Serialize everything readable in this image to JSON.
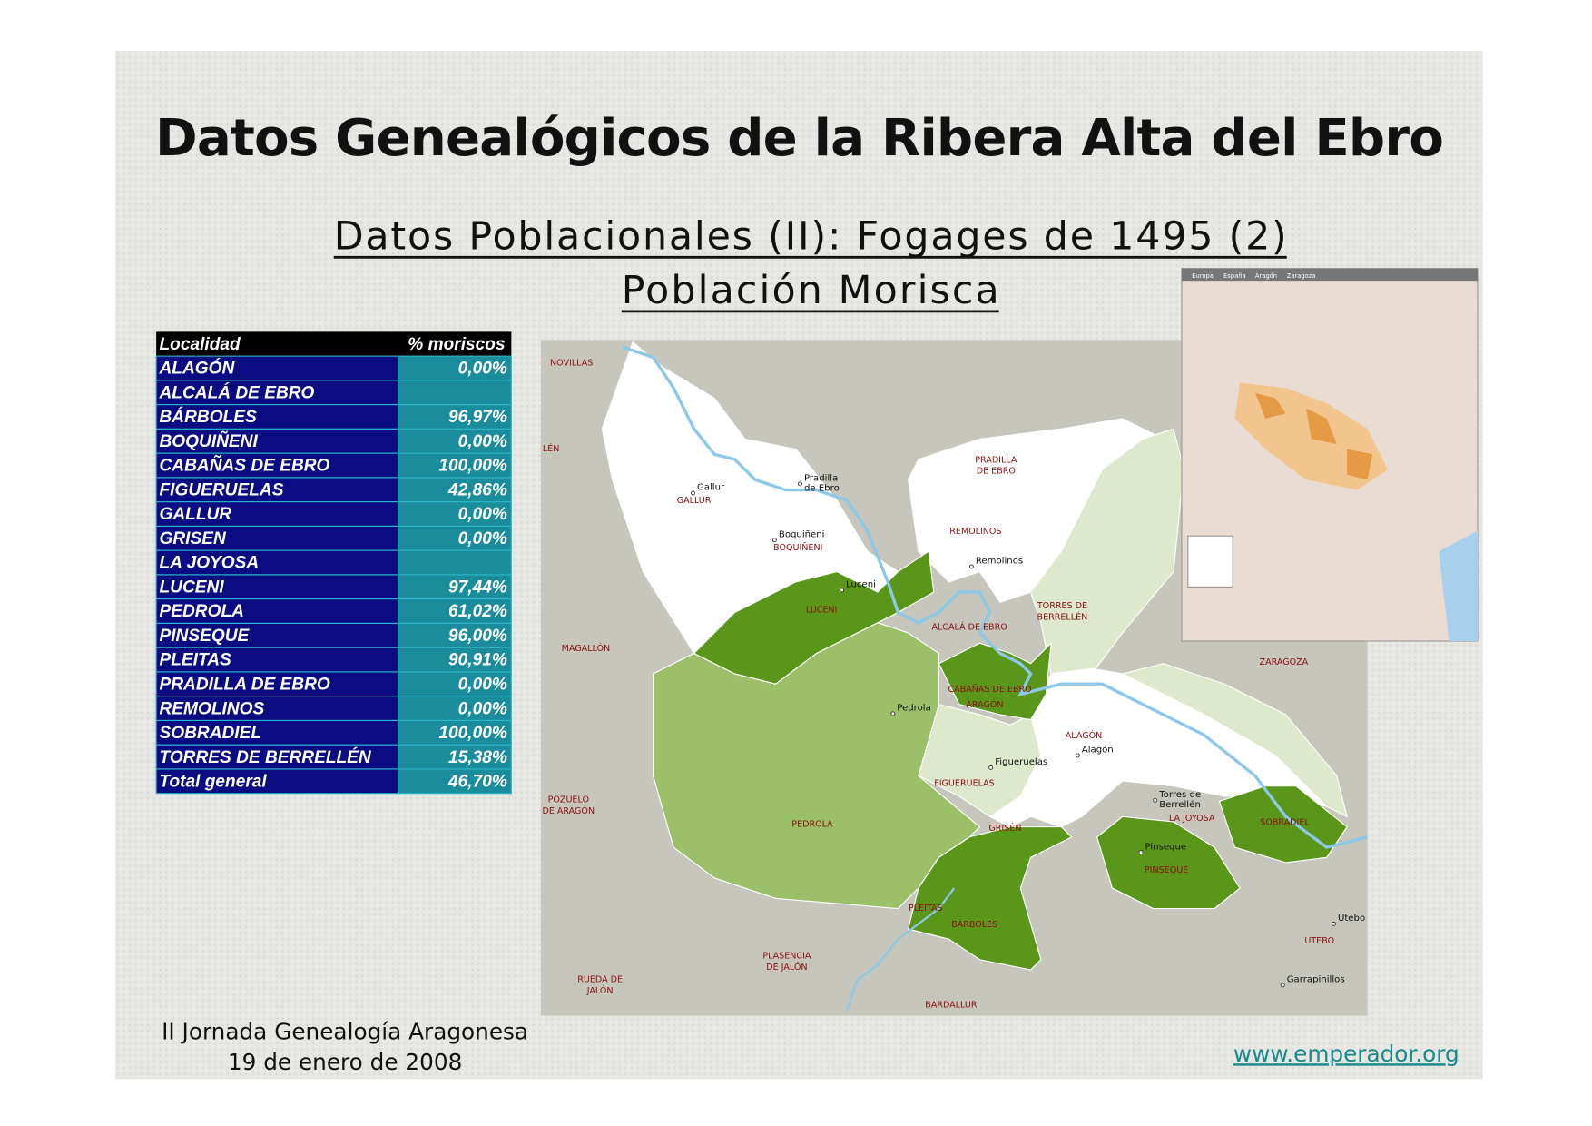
{
  "header": {
    "title": "Datos Genealógicos de la Ribera Alta del Ebro",
    "subtitle": [
      "Datos Poblacionales (II): Fogages de 1495 (2)",
      "Población Morisca"
    ]
  },
  "table": {
    "columns": [
      "Localidad",
      "% moriscos"
    ],
    "rows": [
      [
        "ALAGÓN",
        "0,00%"
      ],
      [
        "ALCALÁ DE EBRO",
        null
      ],
      [
        "BÁRBOLES",
        "96,97%"
      ],
      [
        "BOQUIÑENI",
        "0,00%"
      ],
      [
        "CABAÑAS DE EBRO",
        "100,00%"
      ],
      [
        "FIGUERUELAS",
        "42,86%"
      ],
      [
        "GALLUR",
        "0,00%"
      ],
      [
        "GRISEN",
        "0,00%"
      ],
      [
        "LA JOYOSA",
        null
      ],
      [
        "LUCENI",
        "97,44%"
      ],
      [
        "PEDROLA",
        "61,02%"
      ],
      [
        "PINSEQUE",
        "96,00%"
      ],
      [
        "PLEITAS",
        "90,91%"
      ],
      [
        "PRADILLA DE EBRO",
        "0,00%"
      ],
      [
        "REMOLINOS",
        "0,00%"
      ],
      [
        "SOBRADIEL",
        "100,00%"
      ],
      [
        "TORRES DE BERRELLÉN",
        "15,38%"
      ]
    ],
    "total": [
      "Total general",
      "46,70%"
    ]
  },
  "map": {
    "areas": [
      "NOVILLAS",
      "LÉN",
      "GALLUR",
      "BOQUIÑENI",
      "LUCENI",
      "MAGALLÓN",
      "ALCALÁ DE EBRO",
      [
        "PRADILLA",
        "DE EBRO"
      ],
      "REMOLINOS",
      [
        "TORRES DE",
        "BERRELLÉN"
      ],
      "ZARAGOZA",
      "CABAÑAS DE EBRO",
      "ARAGÓN",
      "ALAGÓN",
      "FIGUERUELAS",
      "PEDROLA",
      [
        "POZUELO",
        "DE ARAGÓN"
      ],
      "GRISÉN",
      "LA JOYOSA",
      "SOBRADIEL",
      "PINSEQUE",
      "PLEITAS",
      "BÁRBOLES",
      "UTEBO",
      [
        "PLASENCIA",
        "DE JALÓN"
      ],
      [
        "RUEDA DE",
        "JALÓN"
      ],
      "BARDALLUR"
    ],
    "towns": [
      "Gallur",
      [
        "Pradilla",
        "de Ebro"
      ],
      "Boquiñeni",
      "Luceni",
      "Remolinos",
      "Pedrola",
      "Figueruelas",
      "Alagón",
      [
        "Torres de",
        "Berrellén"
      ],
      "Pinseque",
      "Utebo",
      "Garrapinillos"
    ]
  },
  "inset": {
    "tabs": [
      "Europa",
      "España",
      "Aragón",
      "Zaragoza"
    ]
  },
  "footer": {
    "event": [
      "II Jornada Genealogía Aragonesa",
      "19 de enero de 2008"
    ],
    "url": "www.emperador.org"
  }
}
